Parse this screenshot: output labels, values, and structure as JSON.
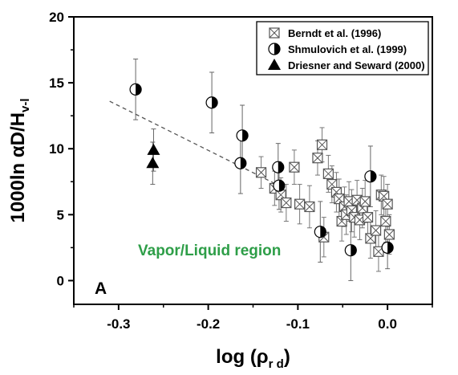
{
  "chart_data": {
    "type": "scatter",
    "xlabel": "log (ρr d)",
    "ylabel": "1000ln αD/Hv-l",
    "xlim": [
      -0.35,
      0.05
    ],
    "ylim": [
      -1.8,
      20
    ],
    "x_ticks": [
      -0.3,
      -0.2,
      -0.1,
      0.0
    ],
    "x_tick_labels": [
      "-0.3",
      "-0.2",
      "-0.1",
      "0.0"
    ],
    "y_ticks": [
      0,
      5,
      10,
      15,
      20
    ],
    "y_tick_labels": [
      "0",
      "5",
      "10",
      "15",
      "20"
    ],
    "legend_position": "top-right",
    "annotation": {
      "text": "Vapor/Liquid region",
      "color": "#2e9e48"
    },
    "panel_label": "A",
    "trendline": {
      "style": "dashed",
      "x": [
        -0.31,
        -0.115
      ],
      "y": [
        13.6,
        7.0
      ]
    },
    "series": [
      {
        "name": "Berndt et al. (1996)",
        "marker": "boxed-x",
        "points": [
          {
            "x": -0.141,
            "y": 8.2,
            "err": 1.2
          },
          {
            "x": -0.126,
            "y": 7.0,
            "err": 1.3
          },
          {
            "x": -0.119,
            "y": 6.5,
            "err": 1.3
          },
          {
            "x": -0.113,
            "y": 5.9,
            "err": 1.4
          },
          {
            "x": -0.104,
            "y": 8.6,
            "err": 1.3
          },
          {
            "x": -0.098,
            "y": 5.8,
            "err": 1.5
          },
          {
            "x": -0.087,
            "y": 5.6,
            "err": 1.6
          },
          {
            "x": -0.078,
            "y": 9.3,
            "err": 1.3
          },
          {
            "x": -0.073,
            "y": 10.3,
            "err": 1.3
          },
          {
            "x": -0.071,
            "y": 3.3,
            "err": 1.5
          },
          {
            "x": -0.066,
            "y": 8.1,
            "err": 1.4
          },
          {
            "x": -0.062,
            "y": 7.3,
            "err": 1.4
          },
          {
            "x": -0.057,
            "y": 6.7,
            "err": 1.5
          },
          {
            "x": -0.054,
            "y": 6.2,
            "err": 1.5
          },
          {
            "x": -0.051,
            "y": 4.5,
            "err": 1.5
          },
          {
            "x": -0.048,
            "y": 5.6,
            "err": 1.5
          },
          {
            "x": -0.046,
            "y": 5.0,
            "err": 1.5
          },
          {
            "x": -0.043,
            "y": 6.0,
            "err": 1.5
          },
          {
            "x": -0.04,
            "y": 5.3,
            "err": 1.6
          },
          {
            "x": -0.037,
            "y": 4.8,
            "err": 1.5
          },
          {
            "x": -0.034,
            "y": 6.1,
            "err": 1.5
          },
          {
            "x": -0.031,
            "y": 4.6,
            "err": 1.5
          },
          {
            "x": -0.028,
            "y": 5.5,
            "err": 1.5
          },
          {
            "x": -0.025,
            "y": 6.0,
            "err": 1.6
          },
          {
            "x": -0.022,
            "y": 4.8,
            "err": 1.5
          },
          {
            "x": -0.019,
            "y": 3.2,
            "err": 1.5
          },
          {
            "x": -0.013,
            "y": 3.8,
            "err": 1.5
          },
          {
            "x": -0.01,
            "y": 2.2,
            "err": 1.5
          },
          {
            "x": -0.007,
            "y": 6.5,
            "err": 1.5
          },
          {
            "x": -0.004,
            "y": 6.4,
            "err": 1.5
          },
          {
            "x": -0.002,
            "y": 4.5,
            "err": 1.6
          },
          {
            "x": 0.0,
            "y": 5.8,
            "err": 1.5
          },
          {
            "x": 0.002,
            "y": 3.5,
            "err": 1.5
          }
        ]
      },
      {
        "name": "Shmulovich et al. (1999)",
        "marker": "half-filled-circle",
        "points": [
          {
            "x": -0.281,
            "y": 14.5,
            "err": 2.3
          },
          {
            "x": -0.196,
            "y": 13.5,
            "err": 2.3
          },
          {
            "x": -0.164,
            "y": 8.9,
            "err": 2.3
          },
          {
            "x": -0.162,
            "y": 11.0,
            "err": 2.3
          },
          {
            "x": -0.122,
            "y": 8.6,
            "err": 1.8
          },
          {
            "x": -0.121,
            "y": 7.2,
            "err": 1.8
          },
          {
            "x": -0.075,
            "y": 3.7,
            "err": 2.3
          },
          {
            "x": -0.041,
            "y": 2.3,
            "err": 2.3
          },
          {
            "x": -0.019,
            "y": 7.9,
            "err": 2.3
          },
          {
            "x": 0.0,
            "y": 2.5,
            "err": 1.6
          }
        ]
      },
      {
        "name": "Driesner and Seward (2000)",
        "marker": "filled-triangle",
        "points": [
          {
            "x": -0.261,
            "y": 9.9,
            "err": 1.6
          },
          {
            "x": -0.262,
            "y": 8.9,
            "err": 1.6
          }
        ]
      }
    ]
  }
}
